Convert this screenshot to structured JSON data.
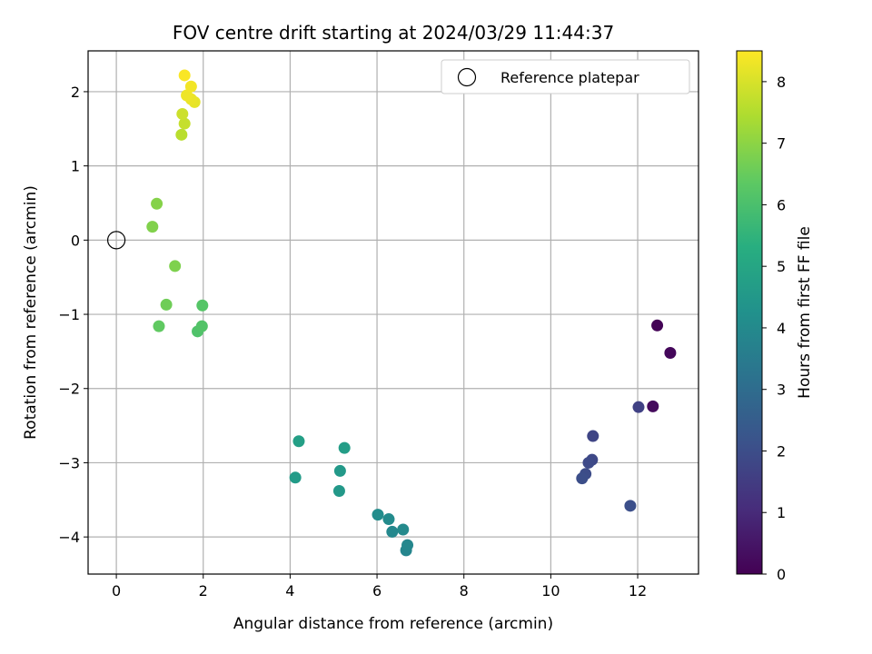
{
  "chart_data": {
    "type": "scatter",
    "title": "FOV centre drift starting at 2024/03/29 11:44:37",
    "xlabel": "Angular distance from reference (arcmin)",
    "ylabel": "Rotation from reference (arcmin)",
    "xlim": [
      -0.65,
      13.4
    ],
    "ylim": [
      -4.5,
      2.55
    ],
    "xticks": [
      0,
      2,
      4,
      6,
      8,
      10,
      12
    ],
    "yticks": [
      -4,
      -3,
      -2,
      -1,
      0,
      1,
      2
    ],
    "xtick_labels": [
      "0",
      "2",
      "4",
      "6",
      "8",
      "10",
      "12"
    ],
    "ytick_labels": [
      "−4",
      "−3",
      "−2",
      "−1",
      "0",
      "1",
      "2"
    ],
    "grid": true,
    "legend": {
      "placement": "top-right",
      "entries": [
        "Reference platepar"
      ]
    },
    "reference_point": {
      "x": 0,
      "y": 0,
      "marker": "open-circle",
      "name": "Reference platepar"
    },
    "colorbar": {
      "label": "Hours from first FF file",
      "range": [
        0,
        8.5
      ],
      "ticks": [
        0,
        1,
        2,
        3,
        4,
        5,
        6,
        7,
        8
      ],
      "tick_labels": [
        "0",
        "1",
        "2",
        "3",
        "4",
        "5",
        "6",
        "7",
        "8"
      ],
      "colormap": "viridis"
    },
    "points": [
      {
        "x": 12.45,
        "y": -1.15,
        "hours": 0.05
      },
      {
        "x": 12.75,
        "y": -1.52,
        "hours": 0.15
      },
      {
        "x": 12.35,
        "y": -2.24,
        "hours": 0.25
      },
      {
        "x": 12.02,
        "y": -2.25,
        "hours": 1.65
      },
      {
        "x": 10.97,
        "y": -2.64,
        "hours": 1.75
      },
      {
        "x": 10.95,
        "y": -2.96,
        "hours": 1.85
      },
      {
        "x": 10.87,
        "y": -3.0,
        "hours": 1.9
      },
      {
        "x": 10.8,
        "y": -3.15,
        "hours": 1.95
      },
      {
        "x": 10.72,
        "y": -3.21,
        "hours": 2.0
      },
      {
        "x": 11.83,
        "y": -3.58,
        "hours": 2.05
      },
      {
        "x": 6.67,
        "y": -4.18,
        "hours": 3.85
      },
      {
        "x": 6.7,
        "y": -4.11,
        "hours": 3.9
      },
      {
        "x": 6.35,
        "y": -3.93,
        "hours": 3.95
      },
      {
        "x": 6.6,
        "y": -3.9,
        "hours": 4.0
      },
      {
        "x": 6.27,
        "y": -3.76,
        "hours": 4.05
      },
      {
        "x": 6.02,
        "y": -3.7,
        "hours": 4.1
      },
      {
        "x": 5.13,
        "y": -3.38,
        "hours": 4.5
      },
      {
        "x": 5.15,
        "y": -3.11,
        "hours": 4.55
      },
      {
        "x": 4.12,
        "y": -3.2,
        "hours": 4.6
      },
      {
        "x": 5.25,
        "y": -2.8,
        "hours": 4.7
      },
      {
        "x": 4.2,
        "y": -2.71,
        "hours": 4.75
      },
      {
        "x": 1.87,
        "y": -1.23,
        "hours": 6.1
      },
      {
        "x": 1.97,
        "y": -1.16,
        "hours": 6.15
      },
      {
        "x": 1.98,
        "y": -0.88,
        "hours": 6.2
      },
      {
        "x": 0.98,
        "y": -1.16,
        "hours": 6.4
      },
      {
        "x": 1.15,
        "y": -0.87,
        "hours": 6.6
      },
      {
        "x": 1.35,
        "y": -0.35,
        "hours": 6.8
      },
      {
        "x": 0.83,
        "y": 0.18,
        "hours": 6.85
      },
      {
        "x": 0.93,
        "y": 0.49,
        "hours": 6.9
      },
      {
        "x": 1.5,
        "y": 1.42,
        "hours": 7.6
      },
      {
        "x": 1.57,
        "y": 1.57,
        "hours": 7.75
      },
      {
        "x": 1.52,
        "y": 1.7,
        "hours": 7.85
      },
      {
        "x": 1.8,
        "y": 1.86,
        "hours": 8.2
      },
      {
        "x": 1.72,
        "y": 1.9,
        "hours": 8.25
      },
      {
        "x": 1.62,
        "y": 1.95,
        "hours": 8.3
      },
      {
        "x": 1.72,
        "y": 2.07,
        "hours": 8.35
      },
      {
        "x": 1.57,
        "y": 2.22,
        "hours": 8.45
      }
    ],
    "marker_color": "viridis by hours"
  }
}
